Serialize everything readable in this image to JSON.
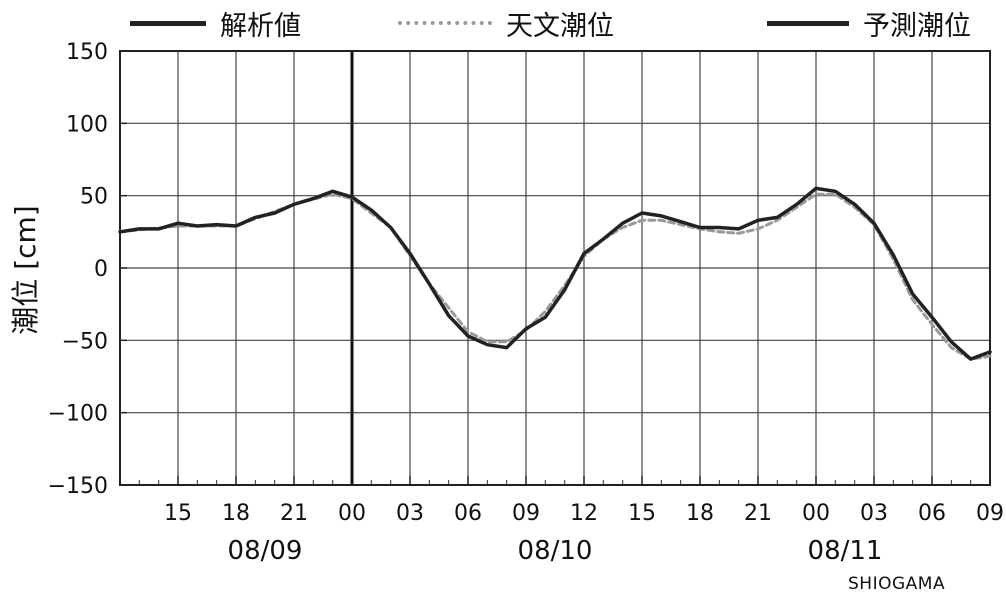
{
  "legend": [
    {
      "label": "解析値",
      "style": "solid",
      "color": "#222222"
    },
    {
      "label": "天文潮位",
      "style": "dashed",
      "color": "#9a9a9a"
    },
    {
      "label": "予測潮位",
      "style": "solid",
      "color": "#222222"
    }
  ],
  "station": "SHIOGAMA",
  "chart_data": {
    "type": "line",
    "title": "",
    "ylabel": "潮位 [cm]",
    "xlabel": "",
    "ylim": [
      -150,
      150
    ],
    "yticks": [
      150,
      100,
      50,
      0,
      -50,
      -100,
      -150
    ],
    "ytick_labels": [
      "150",
      "100",
      "50",
      "0",
      "−50",
      "−100",
      "−150"
    ],
    "xlim": [
      "08/09 12:00",
      "08/11 09:00"
    ],
    "xticks": [
      "08/09 15:00",
      "08/09 18:00",
      "08/09 21:00",
      "08/10 00:00",
      "08/10 03:00",
      "08/10 06:00",
      "08/10 09:00",
      "08/10 12:00",
      "08/10 15:00",
      "08/10 18:00",
      "08/10 21:00",
      "08/11 00:00",
      "08/11 03:00",
      "08/11 06:00",
      "08/11 09:00"
    ],
    "xtick_labels": [
      "15",
      "18",
      "21",
      "00",
      "03",
      "06",
      "09",
      "12",
      "15",
      "18",
      "21",
      "00",
      "03",
      "06",
      "09"
    ],
    "date_labels": [
      {
        "text": "08/09",
        "at": "08/09 19:30"
      },
      {
        "text": "08/10",
        "at": "08/10 10:30"
      },
      {
        "text": "08/11",
        "at": "08/11 01:30"
      }
    ],
    "current_time": "08/10 00:00",
    "grid": true,
    "legend_position": "top",
    "series": [
      {
        "name": "解析値",
        "style": "solid",
        "color": "#222222",
        "x": [
          "08/09 12:00",
          "08/09 13:00",
          "08/09 14:00",
          "08/09 15:00",
          "08/09 16:00",
          "08/09 17:00",
          "08/09 18:00",
          "08/09 19:00",
          "08/09 20:00",
          "08/09 21:00",
          "08/09 22:00",
          "08/09 23:00",
          "08/10 00:00"
        ],
        "y": [
          25,
          27,
          27,
          31,
          29,
          30,
          29,
          35,
          38,
          44,
          48,
          53,
          49
        ]
      },
      {
        "name": "天文潮位",
        "style": "dashed",
        "color": "#9a9a9a",
        "x": [
          "08/09 12:00",
          "08/09 15:00",
          "08/09 18:00",
          "08/09 21:00",
          "08/09 23:00",
          "08/10 00:00",
          "08/10 02:00",
          "08/10 04:00",
          "08/10 06:00",
          "08/10 07:00",
          "08/10 08:00",
          "08/10 09:00",
          "08/10 10:00",
          "08/10 11:00",
          "08/10 12:00",
          "08/10 13:00",
          "08/10 14:00",
          "08/10 15:00",
          "08/10 16:00",
          "08/10 17:00",
          "08/10 18:00",
          "08/10 19:00",
          "08/10 20:00",
          "08/10 21:00",
          "08/10 22:00",
          "08/10 23:00",
          "08/11 00:00",
          "08/11 01:00",
          "08/11 02:00",
          "08/11 03:00",
          "08/11 04:00",
          "08/11 05:00",
          "08/11 06:00",
          "08/11 07:00",
          "08/11 08:00",
          "08/11 09:00"
        ],
        "y": [
          25,
          29,
          29,
          44,
          51,
          48,
          28,
          -11,
          -44,
          -51,
          -51,
          -43,
          -30,
          -12,
          8,
          20,
          28,
          33,
          33,
          30,
          27,
          25,
          24,
          27,
          33,
          42,
          51,
          51,
          42,
          30,
          6,
          -22,
          -39,
          -55,
          -63,
          -61
        ]
      },
      {
        "name": "予測潮位",
        "style": "solid",
        "color": "#222222",
        "x": [
          "08/10 00:00",
          "08/10 01:00",
          "08/10 02:00",
          "08/10 03:00",
          "08/10 04:00",
          "08/10 05:00",
          "08/10 06:00",
          "08/10 07:00",
          "08/10 08:00",
          "08/10 09:00",
          "08/10 10:00",
          "08/10 11:00",
          "08/10 12:00",
          "08/10 13:00",
          "08/10 14:00",
          "08/10 15:00",
          "08/10 16:00",
          "08/10 17:00",
          "08/10 18:00",
          "08/10 19:00",
          "08/10 20:00",
          "08/10 21:00",
          "08/10 22:00",
          "08/10 23:00",
          "08/11 00:00",
          "08/11 01:00",
          "08/11 02:00",
          "08/11 03:00",
          "08/11 04:00",
          "08/11 05:00",
          "08/11 06:00",
          "08/11 07:00",
          "08/11 08:00",
          "08/11 09:00"
        ],
        "y": [
          49,
          40,
          28,
          10,
          -11,
          -33,
          -47,
          -53,
          -55,
          -42,
          -34,
          -15,
          10,
          20,
          31,
          38,
          36,
          32,
          28,
          28,
          27,
          33,
          35,
          44,
          55,
          53,
          44,
          31,
          9,
          -18,
          -34,
          -51,
          -63,
          -58
        ]
      }
    ]
  }
}
